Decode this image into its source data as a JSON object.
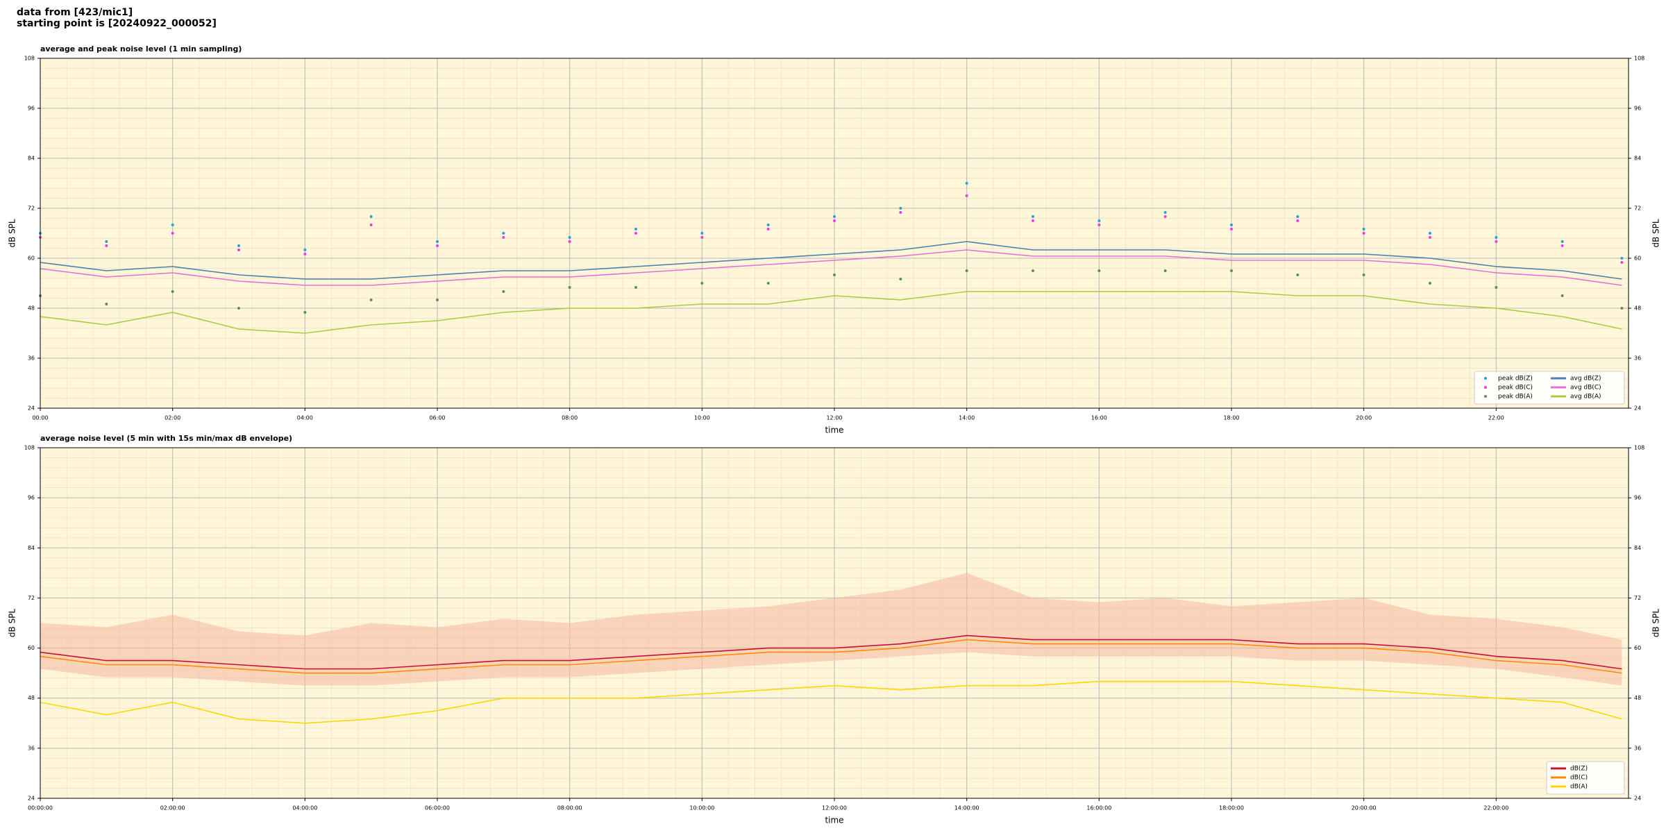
{
  "header": {
    "line1": "data from [423/mic1]",
    "line2": "starting point is [20240922_000052]"
  },
  "chart_data": [
    {
      "type": "line",
      "title": "average and peak noise level (1 min sampling)",
      "xlabel": "time",
      "ylabel": "dB SPL",
      "x": [
        0,
        1,
        2,
        3,
        4,
        5,
        6,
        7,
        8,
        9,
        10,
        11,
        12,
        13,
        14,
        15,
        16,
        17,
        18,
        19,
        20,
        21,
        22,
        23,
        23.9
      ],
      "xlim": [
        0,
        24
      ],
      "xticks": [
        {
          "value": 0,
          "label": "00:00"
        },
        {
          "value": 2,
          "label": "02:00"
        },
        {
          "value": 4,
          "label": "04:00"
        },
        {
          "value": 6,
          "label": "06:00"
        },
        {
          "value": 8,
          "label": "08:00"
        },
        {
          "value": 10,
          "label": "10:00"
        },
        {
          "value": 12,
          "label": "12:00"
        },
        {
          "value": 14,
          "label": "14:00"
        },
        {
          "value": 16,
          "label": "16:00"
        },
        {
          "value": 18,
          "label": "18:00"
        },
        {
          "value": 20,
          "label": "20:00"
        },
        {
          "value": 22,
          "label": "22:00"
        }
      ],
      "ylim": [
        24,
        108
      ],
      "yticks": [
        24,
        36,
        48,
        60,
        72,
        84,
        96,
        108
      ],
      "grid": true,
      "legend": "lower right",
      "legend_columns": 2,
      "series": [
        {
          "name": "peak dB(Z)",
          "style": "scatter",
          "color": "#2a9fd8",
          "values": [
            66,
            64,
            68,
            63,
            62,
            70,
            64,
            66,
            65,
            67,
            66,
            68,
            70,
            72,
            78,
            70,
            69,
            71,
            68,
            70,
            67,
            66,
            65,
            64,
            60
          ]
        },
        {
          "name": "peak dB(C)",
          "style": "scatter",
          "color": "#e83ce8",
          "values": [
            65,
            63,
            66,
            62,
            61,
            68,
            63,
            65,
            64,
            66,
            65,
            67,
            69,
            71,
            75,
            69,
            68,
            70,
            67,
            69,
            66,
            65,
            64,
            63,
            59
          ]
        },
        {
          "name": "peak dB(A)",
          "style": "scatter",
          "color": "#5a8f5a",
          "values": [
            51,
            49,
            52,
            48,
            47,
            50,
            50,
            52,
            53,
            53,
            54,
            54,
            56,
            55,
            57,
            57,
            57,
            57,
            57,
            56,
            56,
            54,
            53,
            51,
            48
          ]
        },
        {
          "name": "avg dB(Z)",
          "style": "line",
          "color": "#4a7fb0",
          "values": [
            59,
            57,
            58,
            56,
            55,
            55,
            56,
            57,
            57,
            58,
            59,
            60,
            61,
            62,
            64,
            62,
            62,
            62,
            61,
            61,
            61,
            60,
            58,
            57,
            55
          ]
        },
        {
          "name": "avg dB(C)",
          "style": "line",
          "color": "#e070d8",
          "values": [
            57.5,
            55.5,
            56.5,
            54.5,
            53.5,
            53.5,
            54.5,
            55.5,
            55.5,
            56.5,
            57.5,
            58.5,
            59.5,
            60.5,
            62,
            60.5,
            60.5,
            60.5,
            59.5,
            59.5,
            59.5,
            58.5,
            56.5,
            55.5,
            53.5
          ]
        },
        {
          "name": "avg dB(A)",
          "style": "line",
          "color": "#a8cc40",
          "values": [
            46,
            44,
            47,
            43,
            42,
            44,
            45,
            47,
            48,
            48,
            49,
            49,
            51,
            50,
            52,
            52,
            52,
            52,
            52,
            51,
            51,
            49,
            48,
            46,
            43
          ]
        }
      ]
    },
    {
      "type": "line",
      "title": "average noise level (5 min with 15s min/max dB envelope)",
      "xlabel": "time",
      "ylabel": "dB SPL",
      "x": [
        0,
        1,
        2,
        3,
        4,
        5,
        6,
        7,
        8,
        9,
        10,
        11,
        12,
        13,
        14,
        15,
        16,
        17,
        18,
        19,
        20,
        21,
        22,
        23,
        23.9
      ],
      "xlim": [
        0,
        24
      ],
      "xticks": [
        {
          "value": 0,
          "label": "00:00:00"
        },
        {
          "value": 2,
          "label": "02:00:00"
        },
        {
          "value": 4,
          "label": "04:00:00"
        },
        {
          "value": 6,
          "label": "06:00:00"
        },
        {
          "value": 8,
          "label": "08:00:00"
        },
        {
          "value": 10,
          "label": "10:00:00"
        },
        {
          "value": 12,
          "label": "12:00:00"
        },
        {
          "value": 14,
          "label": "14:00:00"
        },
        {
          "value": 16,
          "label": "16:00:00"
        },
        {
          "value": 18,
          "label": "18:00:00"
        },
        {
          "value": 20,
          "label": "20:00:00"
        },
        {
          "value": 22,
          "label": "22:00:00"
        }
      ],
      "ylim": [
        24,
        108
      ],
      "yticks": [
        24,
        36,
        48,
        60,
        72,
        84,
        96,
        108
      ],
      "grid": true,
      "legend": "lower right",
      "legend_columns": 1,
      "band": {
        "color": "#f5b8a0",
        "low": [
          55,
          53,
          53,
          52,
          51,
          51,
          52,
          53,
          53,
          54,
          55,
          56,
          57,
          58,
          59,
          58,
          58,
          58,
          58,
          57,
          57,
          56,
          55,
          53,
          51
        ],
        "high": [
          66,
          65,
          68,
          64,
          63,
          66,
          65,
          67,
          66,
          68,
          69,
          70,
          72,
          74,
          78,
          72,
          71,
          72,
          70,
          71,
          72,
          68,
          67,
          65,
          62
        ]
      },
      "series": [
        {
          "name": "dB(Z)",
          "style": "line",
          "color": "#c8102e",
          "values": [
            59,
            57,
            57,
            56,
            55,
            55,
            56,
            57,
            57,
            58,
            59,
            60,
            60,
            61,
            63,
            62,
            62,
            62,
            62,
            61,
            61,
            60,
            58,
            57,
            55
          ]
        },
        {
          "name": "dB(C)",
          "style": "line",
          "color": "#ff8c00",
          "values": [
            58,
            56,
            56,
            55,
            54,
            54,
            55,
            56,
            56,
            57,
            58,
            59,
            59,
            60,
            62,
            61,
            61,
            61,
            61,
            60,
            60,
            59,
            57,
            56,
            54
          ]
        },
        {
          "name": "dB(A)",
          "style": "line",
          "color": "#ffd700",
          "values": [
            47,
            44,
            47,
            43,
            42,
            43,
            45,
            48,
            48,
            48,
            49,
            50,
            51,
            50,
            51,
            51,
            52,
            52,
            52,
            51,
            50,
            49,
            48,
            47,
            43
          ]
        }
      ]
    }
  ]
}
